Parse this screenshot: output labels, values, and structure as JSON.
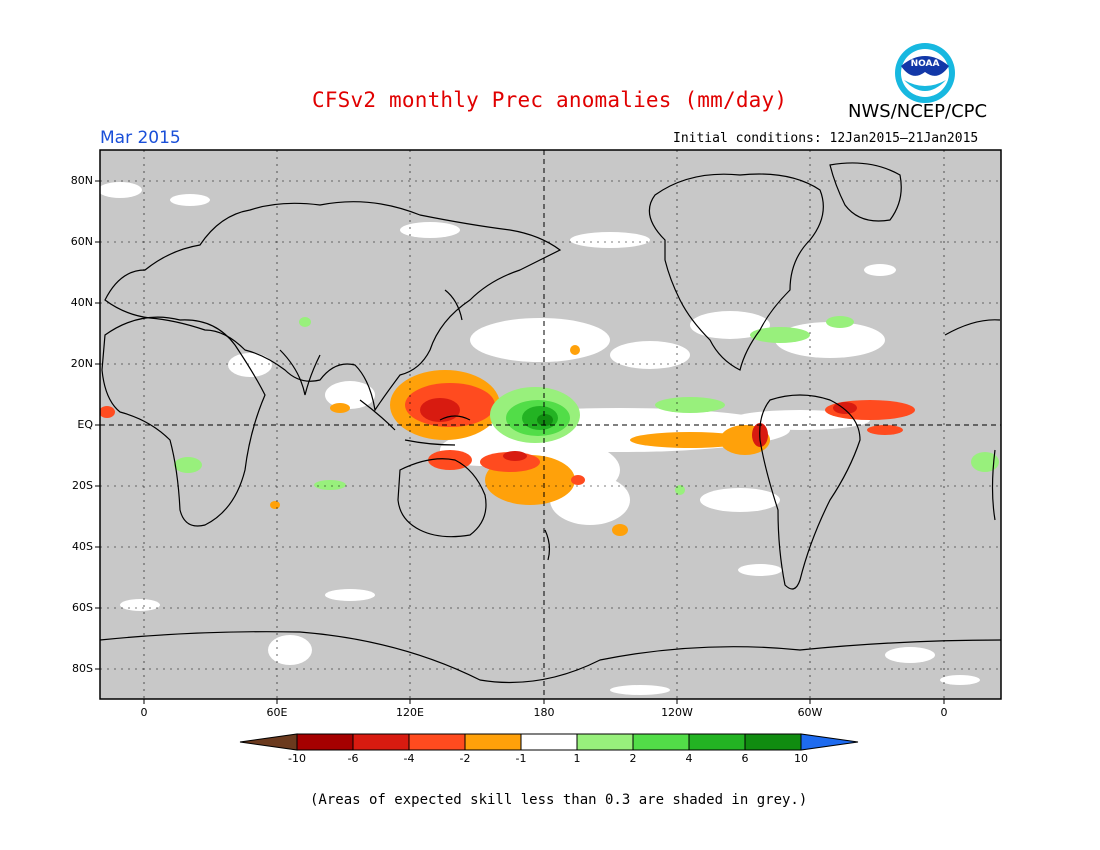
{
  "title": "CFSv2 monthly Prec anomalies (mm/day)",
  "agency": "NWS/NCEP/CPC",
  "logo_text": "NOAA",
  "valid_month": "Mar 2015",
  "initial_conditions": "Initial conditions: 12Jan2015–21Jan2015",
  "lat_labels": [
    "80N",
    "60N",
    "40N",
    "20N",
    "EQ",
    "20S",
    "40S",
    "60S",
    "80S"
  ],
  "lon_labels": [
    "0",
    "60E",
    "120E",
    "180",
    "120W",
    "60W",
    "0"
  ],
  "colorbar": {
    "labels": [
      "-10",
      "-6",
      "-4",
      "-2",
      "-1",
      "1",
      "2",
      "4",
      "6",
      "10"
    ],
    "colors": [
      "#6b3a1e",
      "#a50000",
      "#d81b10",
      "#ff4b1f",
      "#ffa10a",
      "#ffffff",
      "#98f07c",
      "#52dd48",
      "#23b323",
      "#108c10",
      "#1e6bef"
    ]
  },
  "footnote": "(Areas of expected skill less than 0.3 are shaded in grey.)",
  "colors": {
    "title": "#e00000",
    "month": "#1a4fd8",
    "map_background": "#c8c8c8"
  }
}
